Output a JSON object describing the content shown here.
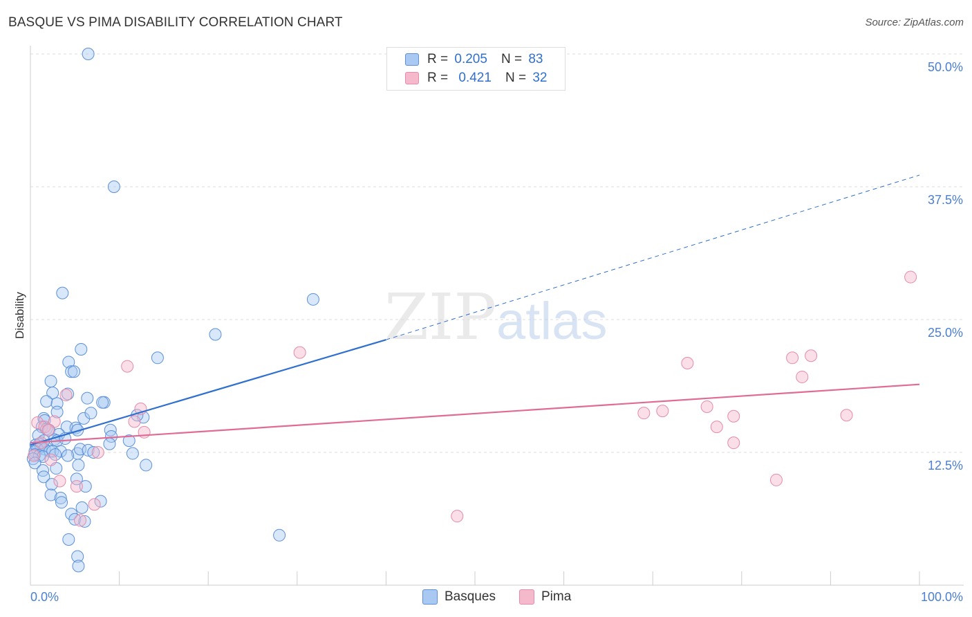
{
  "title": "BASQUE VS PIMA DISABILITY CORRELATION CHART",
  "source": "Source: ZipAtlas.com",
  "watermark": {
    "zip": "ZIP",
    "atlas": "atlas"
  },
  "legend": {
    "rows": [
      {
        "r_label": "R =",
        "r_value": "0.205",
        "n_label": "N =",
        "n_value": "83"
      },
      {
        "r_label": "R =",
        "r_value": "0.421",
        "n_label": "N =",
        "n_value": "32"
      }
    ]
  },
  "colors": {
    "basques_fill": "#a9c9f2",
    "basques_stroke": "#5b8fd9",
    "basques_line": "#2f6fce",
    "pima_fill": "#f5b9cc",
    "pima_stroke": "#e58aa8",
    "pima_line": "#e06b95",
    "tick_label": "#4a7fd0",
    "grid": "#dddddd"
  },
  "chart_data": {
    "type": "scatter",
    "title": "BASQUE VS PIMA DISABILITY CORRELATION CHART",
    "xlabel": "",
    "ylabel": "Disability",
    "xlim": [
      0,
      100
    ],
    "ylim": [
      0,
      52
    ],
    "x_tick_labels": [
      "0.0%",
      "100.0%"
    ],
    "y_ticks": [
      12.5,
      25.0,
      37.5,
      50.0
    ],
    "y_tick_labels": [
      "12.5%",
      "25.0%",
      "37.5%",
      "50.0%"
    ],
    "grid": true,
    "legend_position": "top-center",
    "series": [
      {
        "name": "Basques",
        "R": 0.205,
        "N": 83,
        "trend": {
          "x0": 0,
          "y0": 13.2,
          "x1": 40,
          "y1": 23.1,
          "dashed_to_x": 100,
          "dashed_to_y": 38.6
        },
        "points": [
          [
            6.5,
            50.0
          ],
          [
            9.4,
            37.5
          ],
          [
            3.6,
            27.5
          ],
          [
            31.8,
            26.9
          ],
          [
            20.8,
            23.6
          ],
          [
            5.7,
            22.2
          ],
          [
            14.3,
            21.4
          ],
          [
            4.3,
            21.0
          ],
          [
            4.6,
            20.1
          ],
          [
            4.9,
            20.1
          ],
          [
            2.3,
            19.2
          ],
          [
            2.5,
            18.1
          ],
          [
            4.2,
            18.0
          ],
          [
            1.8,
            17.3
          ],
          [
            6.4,
            17.6
          ],
          [
            8.3,
            17.2
          ],
          [
            8.1,
            17.2
          ],
          [
            3.0,
            17.1
          ],
          [
            3.0,
            16.3
          ],
          [
            1.5,
            15.7
          ],
          [
            1.6,
            15.5
          ],
          [
            6.0,
            15.7
          ],
          [
            12.7,
            15.8
          ],
          [
            1.3,
            14.9
          ],
          [
            1.8,
            14.7
          ],
          [
            2.1,
            14.6
          ],
          [
            4.1,
            14.9
          ],
          [
            5.1,
            14.8
          ],
          [
            5.3,
            14.6
          ],
          [
            9.0,
            14.6
          ],
          [
            0.9,
            14.1
          ],
          [
            3.2,
            14.2
          ],
          [
            2.7,
            13.7
          ],
          [
            3.0,
            13.6
          ],
          [
            1.5,
            13.6
          ],
          [
            1.0,
            13.3
          ],
          [
            0.6,
            13.2
          ],
          [
            0.7,
            12.9
          ],
          [
            1.2,
            13.0
          ],
          [
            0.8,
            12.8
          ],
          [
            0.5,
            12.6
          ],
          [
            1.6,
            12.8
          ],
          [
            2.2,
            12.6
          ],
          [
            2.5,
            12.6
          ],
          [
            3.4,
            12.6
          ],
          [
            5.3,
            12.4
          ],
          [
            0.5,
            12.3
          ],
          [
            1.0,
            12.2
          ],
          [
            1.4,
            12.1
          ],
          [
            2.8,
            12.3
          ],
          [
            4.2,
            12.2
          ],
          [
            5.6,
            12.8
          ],
          [
            6.5,
            12.7
          ],
          [
            11.1,
            13.6
          ],
          [
            11.5,
            12.4
          ],
          [
            0.3,
            11.9
          ],
          [
            0.5,
            11.5
          ],
          [
            5.4,
            11.3
          ],
          [
            13.0,
            11.3
          ],
          [
            1.4,
            10.8
          ],
          [
            1.5,
            10.2
          ],
          [
            5.2,
            10.0
          ],
          [
            2.4,
            9.5
          ],
          [
            6.2,
            9.3
          ],
          [
            2.3,
            8.5
          ],
          [
            3.4,
            8.2
          ],
          [
            3.5,
            7.8
          ],
          [
            7.9,
            7.9
          ],
          [
            5.8,
            7.3
          ],
          [
            4.6,
            6.7
          ],
          [
            5.0,
            6.2
          ],
          [
            6.1,
            6.0
          ],
          [
            4.3,
            4.3
          ],
          [
            28.0,
            4.7
          ],
          [
            5.3,
            2.7
          ],
          [
            5.4,
            1.8
          ],
          [
            9.1,
            14.0
          ],
          [
            12.0,
            16.0
          ],
          [
            3.9,
            13.8
          ],
          [
            7.1,
            12.5
          ],
          [
            2.9,
            11.0
          ],
          [
            6.8,
            16.2
          ],
          [
            8.9,
            13.3
          ]
        ]
      },
      {
        "name": "Pima",
        "R": 0.421,
        "N": 32,
        "trend": {
          "x0": 0,
          "y0": 13.4,
          "x1": 100,
          "y1": 18.9
        },
        "points": [
          [
            99.0,
            29.0
          ],
          [
            30.3,
            21.9
          ],
          [
            10.9,
            20.6
          ],
          [
            73.9,
            20.9
          ],
          [
            85.7,
            21.4
          ],
          [
            87.8,
            21.6
          ],
          [
            86.8,
            19.6
          ],
          [
            4.0,
            17.9
          ],
          [
            12.4,
            16.6
          ],
          [
            69.0,
            16.2
          ],
          [
            71.1,
            16.4
          ],
          [
            76.1,
            16.8
          ],
          [
            79.1,
            15.9
          ],
          [
            91.8,
            16.0
          ],
          [
            0.8,
            15.3
          ],
          [
            2.7,
            15.4
          ],
          [
            11.7,
            15.4
          ],
          [
            12.8,
            14.4
          ],
          [
            77.2,
            14.9
          ],
          [
            79.1,
            13.4
          ],
          [
            1.6,
            14.9
          ],
          [
            2.0,
            14.6
          ],
          [
            7.6,
            12.5
          ],
          [
            0.4,
            12.2
          ],
          [
            2.3,
            11.8
          ],
          [
            3.3,
            9.8
          ],
          [
            5.2,
            9.3
          ],
          [
            83.9,
            9.9
          ],
          [
            7.2,
            7.6
          ],
          [
            48.0,
            6.5
          ],
          [
            5.6,
            6.1
          ],
          [
            1.2,
            13.4
          ]
        ]
      }
    ]
  }
}
